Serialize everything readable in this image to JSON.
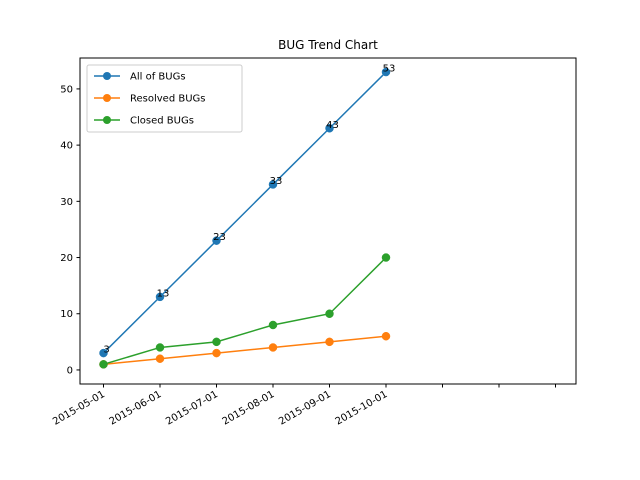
{
  "chart_data": {
    "type": "line",
    "title": "BUG Trend Chart",
    "xlabel": "",
    "ylabel": "",
    "x": [
      "2015-05-01",
      "2015-06-01",
      "2015-07-01",
      "2015-08-01",
      "2015-09-01",
      "2015-10-01"
    ],
    "x_ticks": [
      "2015-05-01",
      "2015-06-01",
      "2015-07-01",
      "2015-08-01",
      "2015-09-01",
      "2015-10-01",
      "",
      "",
      ""
    ],
    "y_ticks": [
      0,
      10,
      20,
      30,
      40,
      50
    ],
    "ylim": [
      -2.5,
      55.5
    ],
    "series": [
      {
        "name": "All of BUGs",
        "color": "#1f77b4",
        "values": [
          3,
          13,
          23,
          33,
          43,
          53
        ],
        "labels": [
          "3",
          "13",
          "23",
          "33",
          "43",
          "53"
        ]
      },
      {
        "name": "Resolved BUGs",
        "color": "#ff7f0e",
        "values": [
          1,
          2,
          3,
          4,
          5,
          6
        ]
      },
      {
        "name": "Closed BUGs",
        "color": "#2ca02c",
        "values": [
          1,
          4,
          5,
          8,
          10,
          20
        ]
      }
    ],
    "legend_position": "upper left",
    "grid": false,
    "marker": "circle",
    "x_tick_rotation": 30
  }
}
